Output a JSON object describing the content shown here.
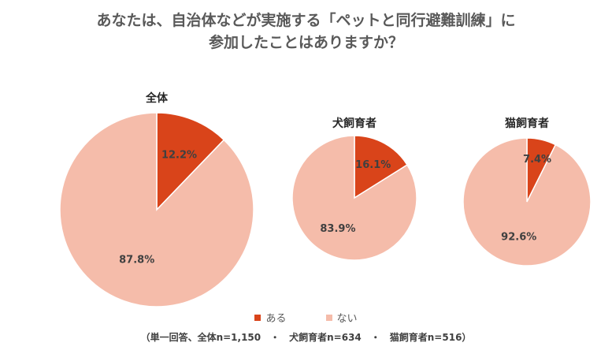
{
  "title": {
    "line1": "あなたは、自治体などが実施する「ペットと同行避難訓練」に",
    "line2": "参加したことはありますか？"
  },
  "legend": [
    {
      "label": "ある",
      "color": "#D9441A"
    },
    {
      "label": "ない",
      "color": "#F5BCAA"
    }
  ],
  "note": "（単一回答、全体n=1,150　・　犬飼育者n=634　・　猫飼育者n=516）",
  "chart_data": [
    {
      "type": "pie",
      "title": "全体",
      "labels": [
        "ある",
        "ない"
      ],
      "values": [
        12.2,
        87.8
      ],
      "data_labels": [
        "12.2%",
        "87.8%"
      ],
      "colors": [
        "#D9441A",
        "#F5BCAA"
      ]
    },
    {
      "type": "pie",
      "title": "犬飼育者",
      "labels": [
        "ある",
        "ない"
      ],
      "values": [
        16.1,
        83.9
      ],
      "data_labels": [
        "16.1%",
        "83.9%"
      ],
      "colors": [
        "#D9441A",
        "#F5BCAA"
      ]
    },
    {
      "type": "pie",
      "title": "猫飼育者",
      "labels": [
        "ある",
        "ない"
      ],
      "values": [
        7.4,
        92.6
      ],
      "data_labels": [
        "7.4%",
        "92.6%"
      ],
      "colors": [
        "#D9441A",
        "#F5BCAA"
      ]
    }
  ]
}
